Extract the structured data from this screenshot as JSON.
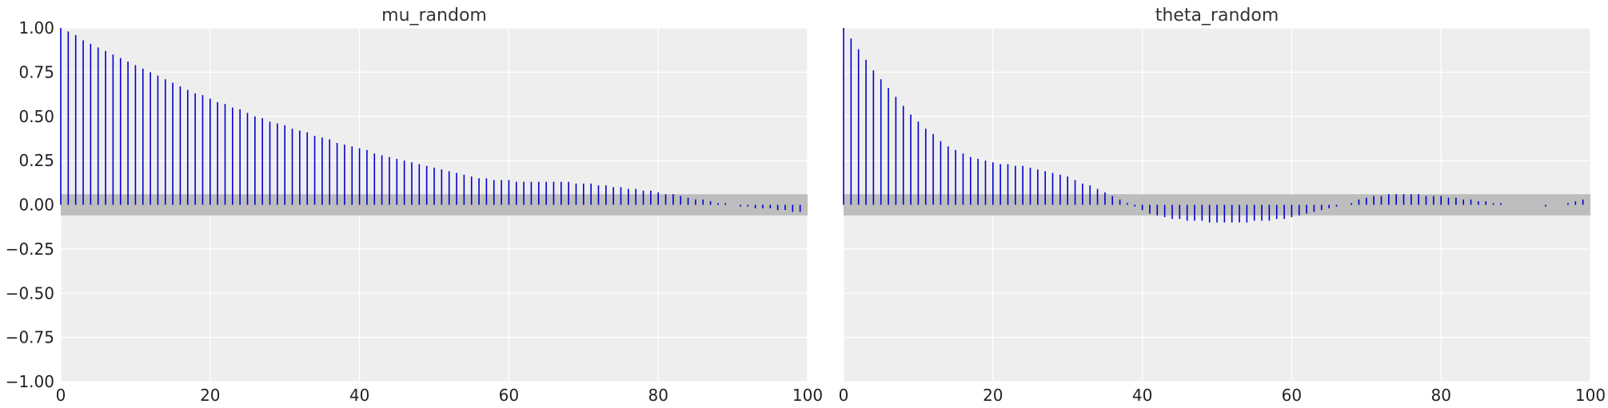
{
  "chart_data": [
    {
      "type": "bar",
      "title": "mu_random",
      "xlabel": "",
      "ylabel": "",
      "xlim": [
        0,
        100
      ],
      "ylim": [
        -1,
        1
      ],
      "x_ticks": [
        0,
        20,
        40,
        60,
        80,
        100
      ],
      "y_ticks": [
        -1.0,
        -0.75,
        -0.5,
        -0.25,
        0.0,
        0.25,
        0.5,
        0.75,
        1.0
      ],
      "x_tick_labels": [
        "0",
        "20",
        "40",
        "60",
        "80",
        "100"
      ],
      "y_tick_labels": [
        "−1.00",
        "−0.75",
        "−0.50",
        "−0.25",
        "0.00",
        "0.25",
        "0.50",
        "0.75",
        "1.00"
      ],
      "grid": true,
      "confidence_band": [
        -0.06,
        0.06
      ],
      "lags": [
        0,
        1,
        2,
        3,
        4,
        5,
        6,
        7,
        8,
        9,
        10,
        11,
        12,
        13,
        14,
        15,
        16,
        17,
        18,
        19,
        20,
        21,
        22,
        23,
        24,
        25,
        26,
        27,
        28,
        29,
        30,
        31,
        32,
        33,
        34,
        35,
        36,
        37,
        38,
        39,
        40,
        41,
        42,
        43,
        44,
        45,
        46,
        47,
        48,
        49,
        50,
        51,
        52,
        53,
        54,
        55,
        56,
        57,
        58,
        59,
        60,
        61,
        62,
        63,
        64,
        65,
        66,
        67,
        68,
        69,
        70,
        71,
        72,
        73,
        74,
        75,
        76,
        77,
        78,
        79,
        80,
        81,
        82,
        83,
        84,
        85,
        86,
        87,
        88,
        89,
        90,
        91,
        92,
        93,
        94,
        95,
        96,
        97,
        98,
        99
      ],
      "values": [
        1.0,
        0.98,
        0.96,
        0.93,
        0.91,
        0.89,
        0.87,
        0.85,
        0.83,
        0.81,
        0.79,
        0.77,
        0.75,
        0.73,
        0.71,
        0.69,
        0.67,
        0.65,
        0.63,
        0.62,
        0.6,
        0.58,
        0.57,
        0.55,
        0.54,
        0.52,
        0.5,
        0.49,
        0.47,
        0.46,
        0.45,
        0.43,
        0.42,
        0.41,
        0.39,
        0.38,
        0.37,
        0.35,
        0.34,
        0.33,
        0.32,
        0.31,
        0.29,
        0.28,
        0.27,
        0.26,
        0.25,
        0.24,
        0.23,
        0.22,
        0.21,
        0.2,
        0.19,
        0.18,
        0.17,
        0.16,
        0.15,
        0.15,
        0.14,
        0.14,
        0.14,
        0.13,
        0.13,
        0.13,
        0.13,
        0.13,
        0.13,
        0.13,
        0.13,
        0.12,
        0.12,
        0.12,
        0.11,
        0.11,
        0.1,
        0.1,
        0.09,
        0.09,
        0.08,
        0.08,
        0.07,
        0.06,
        0.06,
        0.05,
        0.04,
        0.03,
        0.03,
        0.02,
        0.01,
        0.01,
        0.0,
        -0.01,
        -0.01,
        -0.02,
        -0.02,
        -0.02,
        -0.03,
        -0.03,
        -0.04,
        -0.04
      ],
      "color": "#0000cc",
      "band_color": "#bdbdbd"
    },
    {
      "type": "bar",
      "title": "theta_random",
      "xlabel": "",
      "ylabel": "",
      "xlim": [
        0,
        100
      ],
      "ylim": [
        -1,
        1
      ],
      "x_ticks": [
        0,
        20,
        40,
        60,
        80,
        100
      ],
      "x_tick_labels": [
        "0",
        "20",
        "40",
        "60",
        "80",
        "100"
      ],
      "grid": true,
      "shared_y": true,
      "confidence_band": [
        -0.06,
        0.06
      ],
      "lags": [
        0,
        1,
        2,
        3,
        4,
        5,
        6,
        7,
        8,
        9,
        10,
        11,
        12,
        13,
        14,
        15,
        16,
        17,
        18,
        19,
        20,
        21,
        22,
        23,
        24,
        25,
        26,
        27,
        28,
        29,
        30,
        31,
        32,
        33,
        34,
        35,
        36,
        37,
        38,
        39,
        40,
        41,
        42,
        43,
        44,
        45,
        46,
        47,
        48,
        49,
        50,
        51,
        52,
        53,
        54,
        55,
        56,
        57,
        58,
        59,
        60,
        61,
        62,
        63,
        64,
        65,
        66,
        67,
        68,
        69,
        70,
        71,
        72,
        73,
        74,
        75,
        76,
        77,
        78,
        79,
        80,
        81,
        82,
        83,
        84,
        85,
        86,
        87,
        88,
        89,
        90,
        91,
        92,
        93,
        94,
        95,
        96,
        97,
        98,
        99
      ],
      "values": [
        1.0,
        0.94,
        0.88,
        0.82,
        0.76,
        0.71,
        0.66,
        0.61,
        0.56,
        0.51,
        0.47,
        0.43,
        0.4,
        0.36,
        0.33,
        0.31,
        0.29,
        0.27,
        0.26,
        0.25,
        0.24,
        0.23,
        0.23,
        0.22,
        0.22,
        0.21,
        0.2,
        0.19,
        0.18,
        0.17,
        0.16,
        0.14,
        0.12,
        0.11,
        0.09,
        0.07,
        0.05,
        0.03,
        0.01,
        -0.01,
        -0.03,
        -0.05,
        -0.06,
        -0.07,
        -0.08,
        -0.08,
        -0.09,
        -0.09,
        -0.09,
        -0.1,
        -0.1,
        -0.1,
        -0.1,
        -0.1,
        -0.1,
        -0.09,
        -0.09,
        -0.09,
        -0.08,
        -0.08,
        -0.07,
        -0.06,
        -0.05,
        -0.04,
        -0.03,
        -0.02,
        -0.01,
        0.0,
        0.01,
        0.03,
        0.04,
        0.05,
        0.05,
        0.06,
        0.06,
        0.06,
        0.06,
        0.06,
        0.05,
        0.05,
        0.05,
        0.04,
        0.04,
        0.03,
        0.03,
        0.02,
        0.02,
        0.01,
        0.01,
        0.0,
        0.0,
        0.0,
        0.0,
        0.0,
        -0.01,
        0.0,
        0.0,
        0.01,
        0.02,
        0.03
      ],
      "color": "#0000cc",
      "band_color": "#bdbdbd"
    }
  ]
}
